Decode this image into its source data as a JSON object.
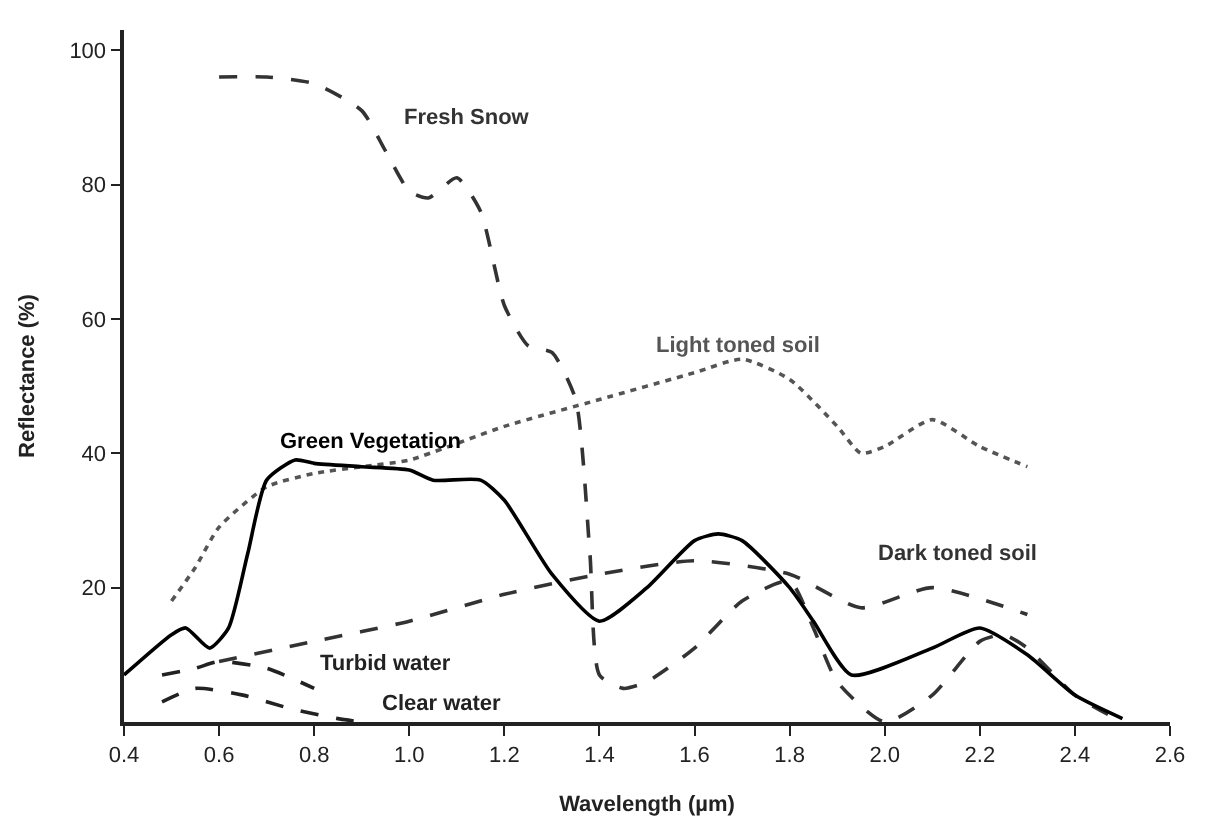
{
  "chart_data": {
    "type": "line",
    "xlabel": "Wavelength (µm)",
    "ylabel": "Reflectance (%)",
    "xlim": [
      0.4,
      2.6
    ],
    "xticks": [
      0.4,
      0.6,
      0.8,
      {
        "value": 1.0,
        "label": "1.0"
      },
      1.2,
      1.4,
      1.6,
      1.8,
      {
        "value": 2.0,
        "label": "2.0"
      },
      2.2,
      2.4,
      2.6
    ],
    "ylim": [
      0,
      103
    ],
    "yticks": [
      20,
      40,
      60,
      80,
      100
    ],
    "legend": false,
    "marker": "none",
    "series": [
      {
        "name": "Fresh Snow",
        "color": "#333333",
        "line_style": "dashed",
        "x": [
          0.6,
          0.7,
          0.8,
          0.9,
          0.95,
          1.0,
          1.04,
          1.1,
          1.15,
          1.2,
          1.25,
          1.3,
          1.35,
          1.38,
          1.4,
          1.45,
          1.5,
          1.6,
          1.7,
          1.8,
          1.85,
          1.9,
          2.0,
          2.1,
          2.2,
          2.25,
          2.3,
          2.4,
          2.5
        ],
        "values": [
          96,
          96,
          95,
          91,
          85,
          79,
          78,
          81,
          76,
          62,
          56,
          55,
          48,
          25,
          7,
          5,
          6,
          11,
          18,
          21,
          14,
          6,
          0,
          4,
          12,
          13,
          11,
          4,
          0
        ]
      },
      {
        "name": "Light toned soil",
        "color": "#555555",
        "line_style": "dotted",
        "x": [
          0.5,
          0.55,
          0.6,
          0.7,
          0.8,
          0.9,
          1.0,
          1.2,
          1.4,
          1.6,
          1.7,
          1.8,
          1.9,
          1.95,
          2.0,
          2.1,
          2.2,
          2.3
        ],
        "values": [
          18,
          23,
          29,
          35,
          37,
          38,
          39,
          44,
          48,
          52,
          54,
          51,
          44,
          40,
          41,
          45,
          41,
          38
        ]
      },
      {
        "name": "Green Vegetation",
        "color": "#000000",
        "line_style": "solid",
        "x": [
          0.4,
          0.5,
          0.53,
          0.58,
          0.62,
          0.66,
          0.7,
          0.76,
          0.8,
          0.9,
          1.0,
          1.05,
          1.15,
          1.2,
          1.3,
          1.4,
          1.5,
          1.6,
          1.65,
          1.7,
          1.8,
          1.85,
          1.93,
          2.1,
          2.2,
          2.3,
          2.4,
          2.5
        ],
        "values": [
          7,
          13,
          14,
          11,
          14,
          25,
          36,
          39,
          38.5,
          38,
          37.5,
          36,
          36,
          33,
          22,
          15,
          20,
          27,
          28,
          27,
          20,
          15,
          7,
          11,
          14,
          10,
          4,
          0.5
        ]
      },
      {
        "name": "Dark toned soil",
        "color": "#333333",
        "line_style": "dashed",
        "x": [
          0.6,
          0.8,
          1.0,
          1.2,
          1.4,
          1.6,
          1.8,
          1.95,
          2.1,
          2.3
        ],
        "values": [
          9,
          12,
          15,
          19,
          22,
          24,
          22,
          17,
          20,
          16
        ]
      },
      {
        "name": "Turbid water",
        "color": "#222222",
        "line_style": "dashed",
        "x": [
          0.48,
          0.55,
          0.6,
          0.7,
          0.8
        ],
        "values": [
          7,
          8,
          9,
          8,
          5
        ]
      },
      {
        "name": "Clear water",
        "color": "#222222",
        "line_style": "dashed",
        "x": [
          0.48,
          0.55,
          0.65,
          0.75,
          0.85,
          0.9
        ],
        "values": [
          3,
          5,
          4,
          2,
          0.5,
          0
        ]
      }
    ]
  }
}
